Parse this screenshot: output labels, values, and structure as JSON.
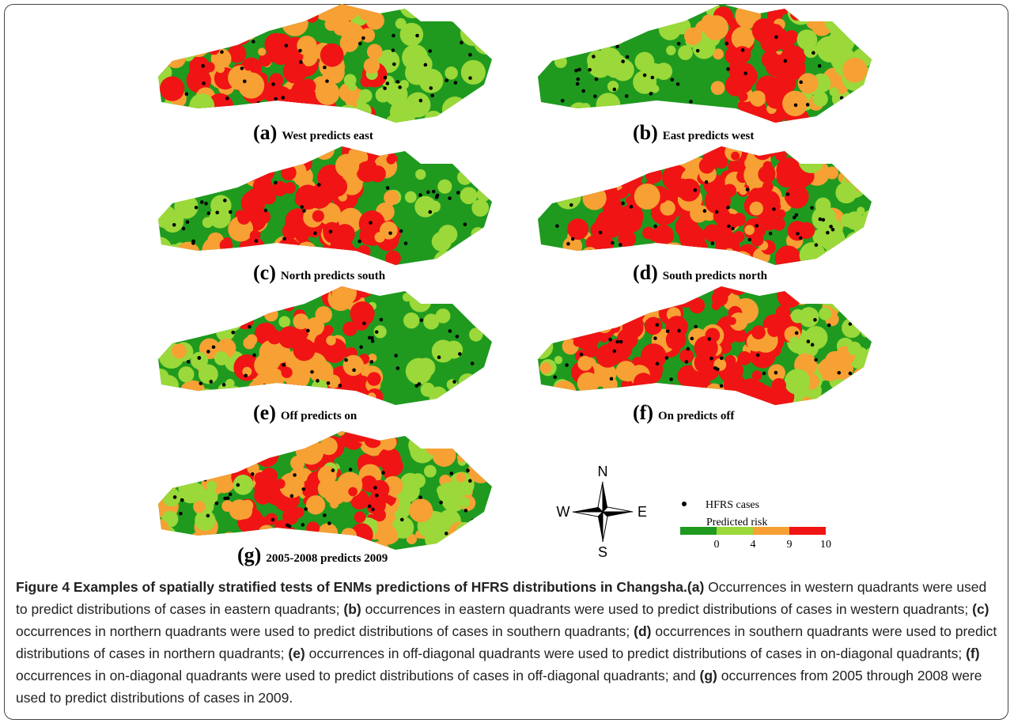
{
  "panels": [
    {
      "letter": "(a)",
      "label": "West predicts east"
    },
    {
      "letter": "(b)",
      "label": "East predicts west"
    },
    {
      "letter": "(c)",
      "label": "North predicts south"
    },
    {
      "letter": "(d)",
      "label": "South predicts north"
    },
    {
      "letter": "(e)",
      "label": "Off predicts on"
    },
    {
      "letter": "(f)",
      "label": "On predicts off"
    },
    {
      "letter": "(g)",
      "label": "2005-2008 predicts 2009"
    }
  ],
  "compass": {
    "n": "N",
    "s": "S",
    "e": "E",
    "w": "W"
  },
  "legend": {
    "cases": "HFRS cases",
    "title": "Predicted risk",
    "ticks": [
      "0",
      "4",
      "9",
      "10"
    ],
    "colors": [
      "#1f9a1f",
      "#9bd83a",
      "#f7a034",
      "#f01414"
    ]
  },
  "caption": {
    "title": "Figure 4 Examples of spatially stratified tests of ENMs predictions of HFRS distributions in Changsha.",
    "parts": [
      {
        "label": "(a)",
        "text": " Occurrences in western quadrants were used to predict distributions of cases in eastern quadrants; "
      },
      {
        "label": "(b)",
        "text": " occurrences in eastern quadrants were used to predict distributions of cases in western quadrants; "
      },
      {
        "label": "(c)",
        "text": " occurrences in northern quadrants were used to predict distributions of cases in southern quadrants; "
      },
      {
        "label": "(d)",
        "text": " occurrences in southern quadrants were used to predict distributions of cases in northern quadrants; "
      },
      {
        "label": "(e)",
        "text": " occurrences in off-diagonal quadrants were used to predict distributions of cases in on-diagonal quadrants; "
      },
      {
        "label": "(f)",
        "text": " occurrences in on-diagonal quadrants were used to predict distributions of cases in off-diagonal quadrants; and "
      },
      {
        "label": "(g)",
        "text": " occurrences from 2005 through 2008 were used to predict distributions of cases in 2009."
      }
    ]
  }
}
